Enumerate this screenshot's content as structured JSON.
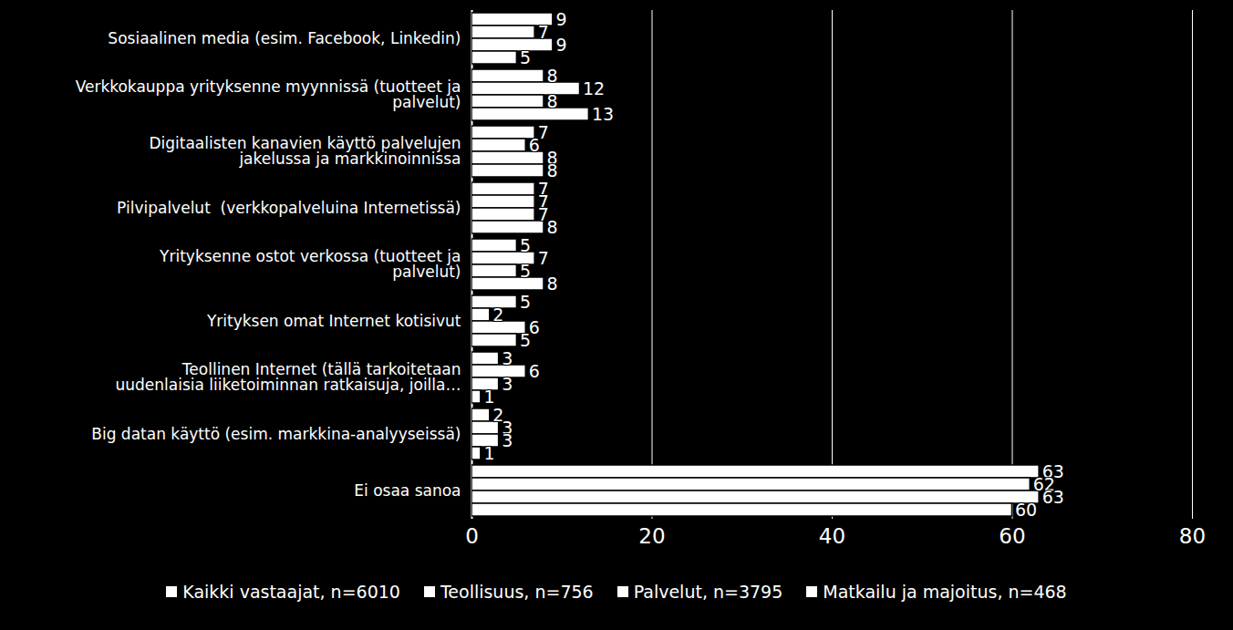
{
  "chart_data": {
    "type": "bar",
    "orientation": "horizontal",
    "categories": [
      "Sosiaalinen media (esim. Facebook, Linkedin)",
      "Verkkokauppa yrityksenne myynnissä (tuotteet ja palvelut)",
      "Digitaalisten kanavien käyttö palvelujen jakelussa ja markkinoinnissa",
      "Pilvipalvelut  (verkkopalveluina Internetissä)",
      "Yrityksenne ostot verkossa (tuotteet ja palvelut)",
      "Yrityksen omat Internet kotisivut",
      "Teollinen Internet (tällä tarkoitetaan uudenlaisia liiketoiminnan ratkaisuja, joilla…",
      "Big datan käyttö (esim. markkina-analyyseissä)",
      "Ei osaa sanoa"
    ],
    "series": [
      {
        "name": "Kaikki vastaajat, n=6010",
        "color": "#ffffff",
        "values": [
          9,
          8,
          7,
          7,
          5,
          5,
          3,
          2,
          63
        ]
      },
      {
        "name": "Teollisuus, n=756",
        "color": "#ffffff",
        "values": [
          7,
          12,
          6,
          7,
          7,
          2,
          6,
          3,
          62
        ]
      },
      {
        "name": "Palvelut, n=3795",
        "color": "#ffffff",
        "values": [
          9,
          8,
          8,
          7,
          5,
          6,
          3,
          3,
          63
        ]
      },
      {
        "name": "Matkailu ja majoitus, n=468",
        "color": "#ffffff",
        "values": [
          5,
          13,
          8,
          8,
          8,
          5,
          1,
          1,
          60
        ]
      }
    ],
    "xlim": [
      0,
      80
    ],
    "xticks": [
      0,
      20,
      40,
      60,
      80
    ],
    "grid": true,
    "data_labels": true,
    "legend": "bottom"
  }
}
